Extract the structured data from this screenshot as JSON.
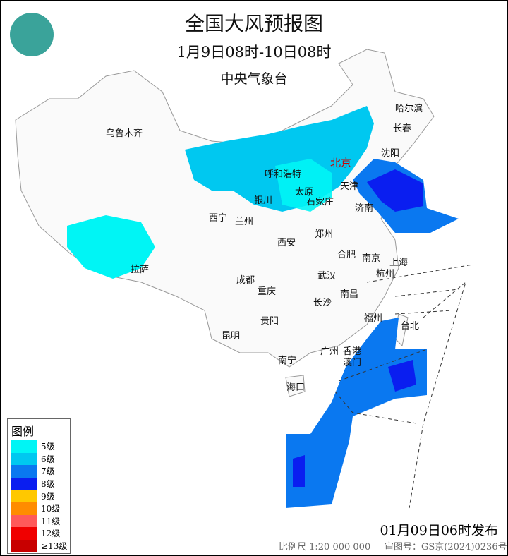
{
  "header": {
    "title": "全国大风预报图",
    "period": "1月9日08时-10日08时",
    "issuer": "中央气象台"
  },
  "logo": {
    "icon": "cma-logo"
  },
  "cities": [
    {
      "name": "乌鲁木齐"
    },
    {
      "name": "哈尔滨"
    },
    {
      "name": "长春"
    },
    {
      "name": "沈阳"
    },
    {
      "name": "北京",
      "capital": true
    },
    {
      "name": "呼和浩特"
    },
    {
      "name": "天津"
    },
    {
      "name": "太原"
    },
    {
      "name": "石家庄"
    },
    {
      "name": "银川"
    },
    {
      "name": "济南"
    },
    {
      "name": "西宁"
    },
    {
      "name": "兰州"
    },
    {
      "name": "郑州"
    },
    {
      "name": "西安"
    },
    {
      "name": "合肥"
    },
    {
      "name": "南京"
    },
    {
      "name": "上海"
    },
    {
      "name": "拉萨"
    },
    {
      "name": "成都"
    },
    {
      "name": "武汉"
    },
    {
      "name": "杭州"
    },
    {
      "name": "重庆"
    },
    {
      "name": "南昌"
    },
    {
      "name": "长沙"
    },
    {
      "name": "福州"
    },
    {
      "name": "台北"
    },
    {
      "name": "贵阳"
    },
    {
      "name": "昆明"
    },
    {
      "name": "广州"
    },
    {
      "name": "香港"
    },
    {
      "name": "澳门"
    },
    {
      "name": "南宁"
    },
    {
      "name": "海口"
    }
  ],
  "legend": {
    "title": "图例",
    "items": [
      {
        "label": "5级",
        "color": "#00f5f5"
      },
      {
        "label": "6级",
        "color": "#00c8f0"
      },
      {
        "label": "7级",
        "color": "#0a78f0"
      },
      {
        "label": "8级",
        "color": "#0a1ef0"
      },
      {
        "label": "9级",
        "color": "#ffc800"
      },
      {
        "label": "10级",
        "color": "#ff8c00"
      },
      {
        "label": "11级",
        "color": "#ff5a5a"
      },
      {
        "label": "12级",
        "color": "#f00000"
      },
      {
        "label": "≥13级",
        "color": "#c80000"
      }
    ]
  },
  "footer": {
    "issued": "01月09日06时发布",
    "scale": "比例尺 1:20 000 000",
    "review": "审图号：GS京(2024)0236号"
  }
}
